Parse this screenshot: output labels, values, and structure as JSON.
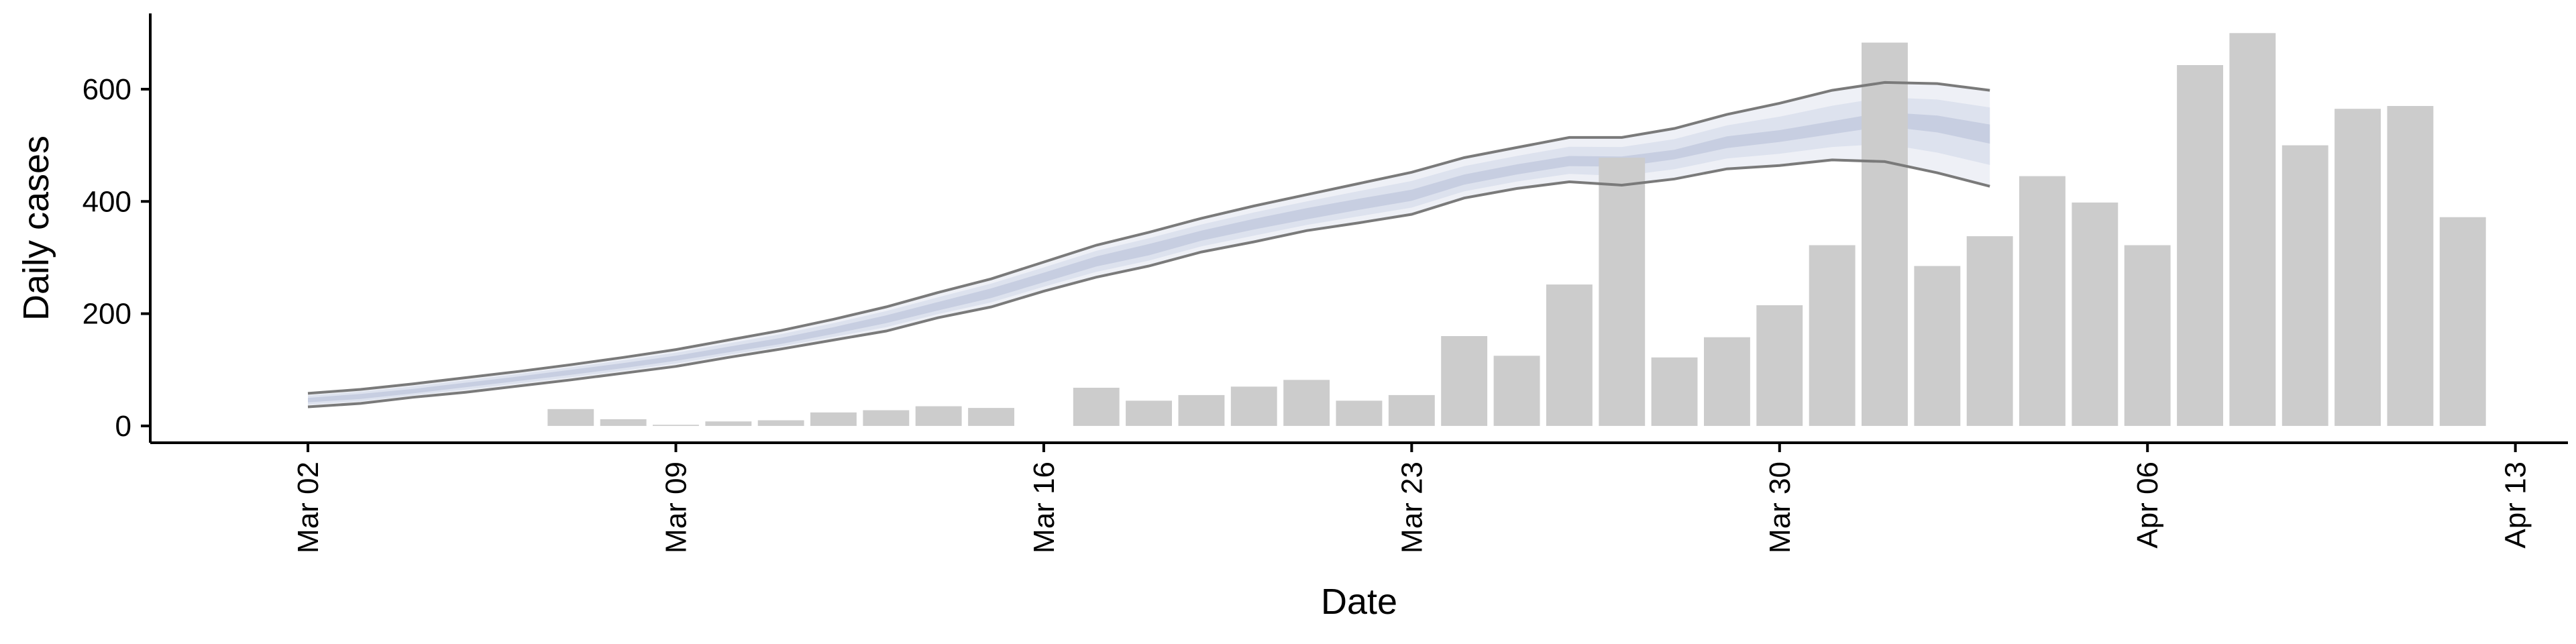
{
  "chart_data": {
    "type": "bar",
    "xlabel": "Date",
    "ylabel": "Daily cases",
    "x_axis": {
      "type": "date",
      "limits": [
        "2020-02-28",
        "2020-04-14"
      ],
      "ticks": [
        {
          "date": "2020-03-02",
          "label": "Mar 02"
        },
        {
          "date": "2020-03-09",
          "label": "Mar 09"
        },
        {
          "date": "2020-03-16",
          "label": "Mar 16"
        },
        {
          "date": "2020-03-23",
          "label": "Mar 23"
        },
        {
          "date": "2020-03-30",
          "label": "Mar 30"
        },
        {
          "date": "2020-04-06",
          "label": "Apr 06"
        },
        {
          "date": "2020-04-13",
          "label": "Apr 13"
        }
      ]
    },
    "y_axis": {
      "ylim": [
        -30,
        735
      ],
      "ticks": [
        0,
        200,
        400,
        600
      ]
    },
    "grid": false,
    "legend": "none",
    "colors": {
      "bars": "#cccccc",
      "band_outer": "#eef0f6",
      "band_mid": "#dde2ee",
      "band_inner": "#c3cade",
      "bound_lines": "#7a7a7a",
      "axis": "#000000"
    },
    "series": [
      {
        "type": "bar",
        "dates": [
          "2020-03-07",
          "2020-03-08",
          "2020-03-09",
          "2020-03-10",
          "2020-03-11",
          "2020-03-12",
          "2020-03-13",
          "2020-03-14",
          "2020-03-15",
          "2020-03-17",
          "2020-03-18",
          "2020-03-19",
          "2020-03-20",
          "2020-03-21",
          "2020-03-22",
          "2020-03-23",
          "2020-03-24",
          "2020-03-25",
          "2020-03-26",
          "2020-03-27",
          "2020-03-28",
          "2020-03-29",
          "2020-03-30",
          "2020-03-31",
          "2020-04-01",
          "2020-04-02",
          "2020-04-03",
          "2020-04-04",
          "2020-04-05",
          "2020-04-06",
          "2020-04-07",
          "2020-04-08",
          "2020-04-09",
          "2020-04-10",
          "2020-04-11",
          "2020-04-12"
        ],
        "values": [
          30,
          12,
          2,
          8,
          10,
          24,
          28,
          35,
          32,
          68,
          45,
          55,
          70,
          82,
          45,
          55,
          160,
          125,
          252,
          478,
          122,
          158,
          215,
          322,
          683,
          285,
          338,
          445,
          398,
          322,
          643,
          700,
          500,
          565,
          570,
          372
        ]
      },
      {
        "type": "band",
        "dates": [
          "2020-03-02",
          "2020-03-03",
          "2020-03-04",
          "2020-03-05",
          "2020-03-06",
          "2020-03-07",
          "2020-03-08",
          "2020-03-09",
          "2020-03-10",
          "2020-03-11",
          "2020-03-12",
          "2020-03-13",
          "2020-03-14",
          "2020-03-15",
          "2020-03-16",
          "2020-03-17",
          "2020-03-18",
          "2020-03-19",
          "2020-03-20",
          "2020-03-21",
          "2020-03-22",
          "2020-03-23",
          "2020-03-24",
          "2020-03-25",
          "2020-03-26",
          "2020-03-27",
          "2020-03-28",
          "2020-03-29",
          "2020-03-30",
          "2020-03-31",
          "2020-04-01",
          "2020-04-02",
          "2020-04-03"
        ],
        "upper": [
          58,
          65,
          75,
          86,
          97,
          109,
          122,
          136,
          153,
          170,
          190,
          212,
          238,
          262,
          292,
          322,
          345,
          370,
          392,
          412,
          432,
          452,
          478,
          496,
          514,
          514,
          530,
          555,
          575,
          598,
          612,
          610,
          598
        ],
        "lower": [
          34,
          40,
          51,
          60,
          71,
          82,
          94,
          106,
          122,
          137,
          153,
          169,
          193,
          212,
          240,
          265,
          285,
          310,
          328,
          348,
          362,
          377,
          406,
          423,
          435,
          429,
          440,
          458,
          464,
          474,
          471,
          451,
          427
        ],
        "inner_upper": [
          50,
          57,
          66,
          77,
          88,
          100,
          112,
          125,
          141,
          157,
          176,
          197,
          221,
          245,
          273,
          302,
          324,
          348,
          369,
          388,
          405,
          421,
          448,
          466,
          481,
          480,
          492,
          516,
          527,
          543,
          559,
          553,
          537
        ],
        "inner_lower": [
          42,
          48,
          58,
          69,
          80,
          91,
          103,
          116,
          131,
          146,
          164,
          183,
          206,
          228,
          256,
          284,
          304,
          330,
          350,
          368,
          385,
          401,
          430,
          448,
          463,
          462,
          475,
          495,
          506,
          520,
          534,
          523,
          503
        ]
      }
    ]
  }
}
